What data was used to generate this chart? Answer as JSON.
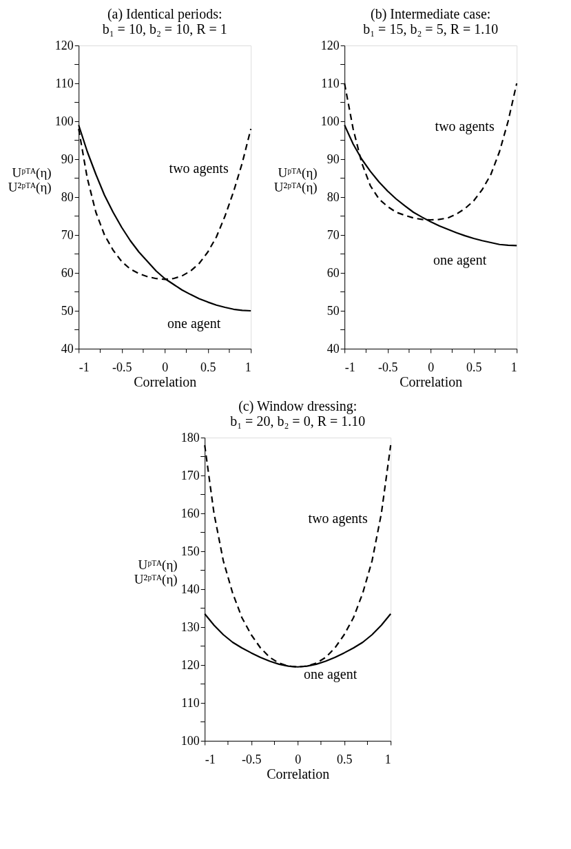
{
  "chart_data": [
    {
      "type": "line",
      "title": "(a) Identical periods:",
      "subtitle": "b₁ = 10, b₂ = 10, R = 1",
      "xlabel": "Correlation",
      "ylabel": "Uᵖᵀᴬ(η)\nU²ᵖᵀᴬ(η)",
      "xlim": [
        -1,
        1
      ],
      "ylim": [
        40,
        120
      ],
      "xticks": [
        -1,
        {
          "value": -0.75,
          "label": null
        },
        -0.5,
        {
          "value": -0.25,
          "label": null
        },
        0,
        {
          "value": 0.25,
          "label": null
        },
        0.5,
        {
          "value": 0.75,
          "label": null
        },
        1
      ],
      "yticks": [
        40,
        {
          "value": 45,
          "label": null
        },
        50,
        {
          "value": 55,
          "label": null
        },
        60,
        {
          "value": 65,
          "label": null
        },
        70,
        {
          "value": 75,
          "label": null
        },
        80,
        {
          "value": 85,
          "label": null
        },
        90,
        {
          "value": 95,
          "label": null
        },
        100,
        {
          "value": 105,
          "label": null
        },
        110,
        {
          "value": 115,
          "label": null
        },
        120
      ],
      "grid": false,
      "marker": "none",
      "x": [
        -1,
        -0.9,
        -0.8,
        -0.7,
        -0.6,
        -0.5,
        -0.4,
        -0.3,
        -0.2,
        -0.1,
        0,
        0.1,
        0.2,
        0.3,
        0.4,
        0.5,
        0.6,
        0.7,
        0.8,
        0.9,
        1
      ],
      "series": [
        {
          "name": "one agent",
          "color": "#000000",
          "line_style": "solid",
          "values": [
            99,
            92,
            86,
            80.5,
            76,
            72,
            68.5,
            65.5,
            63,
            60.5,
            58.5,
            57,
            55.5,
            54.3,
            53.2,
            52.3,
            51.5,
            50.9,
            50.4,
            50.1,
            50
          ]
        },
        {
          "name": "two agents",
          "color": "#000000",
          "line_style": "dashed",
          "values": [
            98,
            85,
            76,
            70,
            66,
            63,
            61,
            59.8,
            59,
            58.5,
            58.3,
            58.5,
            59.2,
            60.5,
            62.5,
            65.5,
            69.5,
            75,
            81.5,
            89,
            98
          ]
        }
      ]
    },
    {
      "type": "line",
      "title": "(b) Intermediate case:",
      "subtitle": "b₁ = 15, b₂ = 5, R = 1.10",
      "xlabel": "Correlation",
      "ylabel": "Uᵖᵀᴬ(η)\nU²ᵖᵀᴬ(η)",
      "xlim": [
        -1,
        1
      ],
      "ylim": [
        40,
        120
      ],
      "xticks": [
        -1,
        {
          "value": -0.75,
          "label": null
        },
        -0.5,
        {
          "value": -0.25,
          "label": null
        },
        0,
        {
          "value": 0.25,
          "label": null
        },
        0.5,
        {
          "value": 0.75,
          "label": null
        },
        1
      ],
      "yticks": [
        40,
        {
          "value": 45,
          "label": null
        },
        50,
        {
          "value": 55,
          "label": null
        },
        60,
        {
          "value": 65,
          "label": null
        },
        70,
        {
          "value": 75,
          "label": null
        },
        80,
        {
          "value": 85,
          "label": null
        },
        90,
        {
          "value": 95,
          "label": null
        },
        100,
        {
          "value": 105,
          "label": null
        },
        110,
        {
          "value": 115,
          "label": null
        },
        120
      ],
      "grid": false,
      "marker": "none",
      "x": [
        -1,
        -0.9,
        -0.8,
        -0.7,
        -0.6,
        -0.5,
        -0.4,
        -0.3,
        -0.2,
        -0.1,
        0,
        0.1,
        0.2,
        0.3,
        0.4,
        0.5,
        0.6,
        0.7,
        0.8,
        0.9,
        1
      ],
      "series": [
        {
          "name": "one agent",
          "color": "#000000",
          "line_style": "solid",
          "values": [
            99,
            94,
            90,
            86.8,
            84,
            81.6,
            79.5,
            77.7,
            76,
            74.7,
            73.5,
            72.4,
            71.5,
            70.6,
            69.8,
            69.1,
            68.5,
            68,
            67.5,
            67.3,
            67.2
          ]
        },
        {
          "name": "two agents",
          "color": "#000000",
          "line_style": "dashed",
          "values": [
            110,
            98,
            89,
            83,
            79.5,
            77.5,
            76,
            75.2,
            74.5,
            74.1,
            74,
            74.1,
            74.5,
            75.5,
            77,
            79,
            82,
            86,
            92,
            100,
            110
          ]
        }
      ]
    },
    {
      "type": "line",
      "title": "(c) Window dressing:",
      "subtitle": "b₁ = 20, b₂ = 0, R = 1.10",
      "xlabel": "Correlation",
      "ylabel": "Uᵖᵀᴬ(η)\nU²ᵖᵀᴬ(η)",
      "xlim": [
        -1,
        1
      ],
      "ylim": [
        100,
        180
      ],
      "xticks": [
        -1,
        {
          "value": -0.75,
          "label": null
        },
        -0.5,
        {
          "value": -0.25,
          "label": null
        },
        0,
        {
          "value": 0.25,
          "label": null
        },
        0.5,
        {
          "value": 0.75,
          "label": null
        },
        1
      ],
      "yticks": [
        100,
        {
          "value": 105,
          "label": null
        },
        110,
        {
          "value": 115,
          "label": null
        },
        120,
        {
          "value": 125,
          "label": null
        },
        130,
        {
          "value": 135,
          "label": null
        },
        140,
        {
          "value": 145,
          "label": null
        },
        150,
        {
          "value": 155,
          "label": null
        },
        160,
        {
          "value": 165,
          "label": null
        },
        170,
        {
          "value": 175,
          "label": null
        },
        180
      ],
      "grid": false,
      "marker": "none",
      "x": [
        -1,
        -0.9,
        -0.8,
        -0.7,
        -0.6,
        -0.5,
        -0.4,
        -0.3,
        -0.2,
        -0.1,
        0,
        0.1,
        0.2,
        0.3,
        0.4,
        0.5,
        0.6,
        0.7,
        0.8,
        0.9,
        1
      ],
      "series": [
        {
          "name": "one agent",
          "color": "#000000",
          "line_style": "solid",
          "values": [
            133.5,
            130.5,
            128,
            126,
            124.5,
            123.2,
            122,
            121,
            120.2,
            119.7,
            119.5,
            119.7,
            120.2,
            121,
            122,
            123.2,
            124.5,
            126,
            128,
            130.5,
            133.5
          ]
        },
        {
          "name": "two agents",
          "color": "#000000",
          "line_style": "dashed",
          "values": [
            178,
            160,
            147.5,
            139,
            132.5,
            128,
            124.5,
            122,
            120.5,
            119.7,
            119.5,
            119.7,
            120.5,
            122,
            124.5,
            128,
            132.5,
            139,
            147.5,
            160,
            178
          ]
        }
      ]
    }
  ]
}
